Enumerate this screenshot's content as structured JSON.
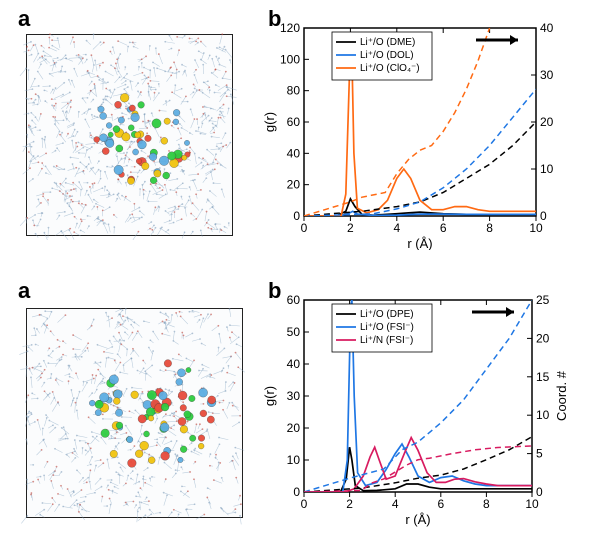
{
  "labels": {
    "a": "a",
    "b": "b"
  },
  "top": {
    "sim_alt": "molecular simulation snapshot (DME/DOL/ClO4)",
    "chart": {
      "type": "line",
      "xlabel": "r (Å)",
      "ylabel_left": "g(r)",
      "xlim": [
        0,
        10
      ],
      "ylim_left": [
        0,
        120
      ],
      "ylim_right": [
        0,
        40
      ],
      "xticks": [
        0,
        2,
        4,
        6,
        8,
        10
      ],
      "yticks_left": [
        0,
        20,
        40,
        60,
        80,
        100,
        120
      ],
      "yticks_right": [
        0,
        10,
        20,
        30,
        40
      ],
      "background_color": "#ffffff",
      "axis_color": "#000000",
      "legend": [
        {
          "label": "Li⁺/O (DME)",
          "color": "#000000"
        },
        {
          "label": "Li⁺/O (DOL)",
          "color": "#1f77e4"
        },
        {
          "label": "Li⁺/O (ClO₄⁻)",
          "color": "#ff6a13"
        }
      ],
      "series_solid": [
        {
          "color": "#000000",
          "xy": [
            [
              0,
              0
            ],
            [
              1.4,
              0
            ],
            [
              1.8,
              3
            ],
            [
              2.0,
              11
            ],
            [
              2.2,
              6
            ],
            [
              2.5,
              1
            ],
            [
              3.0,
              0.5
            ],
            [
              4.0,
              1.5
            ],
            [
              4.5,
              2
            ],
            [
              5.0,
              2.5
            ],
            [
              6.0,
              1.5
            ],
            [
              7.0,
              1
            ],
            [
              8.0,
              1
            ],
            [
              9.0,
              1
            ],
            [
              10,
              1
            ]
          ]
        },
        {
          "color": "#1f77e4",
          "xy": [
            [
              0,
              0
            ],
            [
              1.5,
              0
            ],
            [
              1.9,
              1.5
            ],
            [
              2.1,
              3
            ],
            [
              2.3,
              1.2
            ],
            [
              3.0,
              0.3
            ],
            [
              4.0,
              0.6
            ],
            [
              5.0,
              1.2
            ],
            [
              6.0,
              1.2
            ],
            [
              7.0,
              1
            ],
            [
              8.0,
              1
            ],
            [
              9.0,
              1
            ],
            [
              10,
              1
            ]
          ]
        },
        {
          "color": "#ff6a13",
          "xy": [
            [
              0,
              0
            ],
            [
              1.6,
              0
            ],
            [
              1.8,
              14
            ],
            [
              2.0,
              110
            ],
            [
              2.05,
              112
            ],
            [
              2.15,
              40
            ],
            [
              2.3,
              5
            ],
            [
              2.7,
              2
            ],
            [
              3.2,
              4
            ],
            [
              3.6,
              10
            ],
            [
              4.0,
              24
            ],
            [
              4.3,
              30
            ],
            [
              4.6,
              24
            ],
            [
              5.0,
              10
            ],
            [
              5.5,
              4
            ],
            [
              6.0,
              4
            ],
            [
              6.5,
              6
            ],
            [
              7.0,
              6
            ],
            [
              7.5,
              4
            ],
            [
              8.0,
              3
            ],
            [
              9.0,
              3
            ],
            [
              10,
              3
            ]
          ]
        }
      ],
      "series_dashed_right": [
        {
          "color": "#000000",
          "xy": [
            [
              0,
              0
            ],
            [
              2.0,
              0.8
            ],
            [
              2.5,
              1
            ],
            [
              4.0,
              2
            ],
            [
              5.0,
              3
            ],
            [
              6.0,
              5
            ],
            [
              7.0,
              8
            ],
            [
              8.0,
              11
            ],
            [
              9.0,
              15
            ],
            [
              10,
              20
            ]
          ]
        },
        {
          "color": "#1f77e4",
          "xy": [
            [
              0,
              0
            ],
            [
              2.0,
              0.3
            ],
            [
              3.0,
              0.5
            ],
            [
              4.0,
              1.5
            ],
            [
              5.0,
              3
            ],
            [
              6.0,
              6
            ],
            [
              7.0,
              10
            ],
            [
              8.0,
              15
            ],
            [
              9.0,
              21
            ],
            [
              10,
              27
            ]
          ]
        },
        {
          "color": "#ff6a13",
          "xy": [
            [
              0,
              0
            ],
            [
              2.0,
              3
            ],
            [
              2.5,
              4
            ],
            [
              3.5,
              5
            ],
            [
              4.0,
              9
            ],
            [
              4.5,
              12
            ],
            [
              5.0,
              14
            ],
            [
              5.5,
              15
            ],
            [
              6.0,
              18
            ],
            [
              6.5,
              22
            ],
            [
              7.0,
              27
            ],
            [
              7.5,
              33
            ],
            [
              8.0,
              40
            ]
          ]
        }
      ]
    }
  },
  "bottom": {
    "sim_alt": "molecular simulation snapshot (DPE/FSI)",
    "chart": {
      "type": "line",
      "xlabel": "r (Å)",
      "ylabel_left": "g(r)",
      "ylabel_right": "Coord. #",
      "xlim": [
        0,
        10
      ],
      "ylim_left": [
        0,
        60
      ],
      "ylim_right": [
        0,
        25
      ],
      "xticks": [
        0,
        2,
        4,
        6,
        8,
        10
      ],
      "yticks_left": [
        0,
        10,
        20,
        30,
        40,
        50,
        60
      ],
      "yticks_right": [
        0,
        5,
        10,
        15,
        20,
        25
      ],
      "background_color": "#ffffff",
      "axis_color": "#000000",
      "legend": [
        {
          "label": "Li⁺/O (DPE)",
          "color": "#000000"
        },
        {
          "label": "Li⁺/O (FSI⁻)",
          "color": "#1f77e4"
        },
        {
          "label": "Li⁺/N (FSI⁻)",
          "color": "#d81b60"
        }
      ],
      "series_solid": [
        {
          "color": "#000000",
          "xy": [
            [
              0,
              0
            ],
            [
              1.6,
              0
            ],
            [
              1.85,
              4
            ],
            [
              2.0,
              14
            ],
            [
              2.1,
              10
            ],
            [
              2.25,
              2
            ],
            [
              2.6,
              0.4
            ],
            [
              3.2,
              0.5
            ],
            [
              4.0,
              1
            ],
            [
              4.5,
              2.5
            ],
            [
              5.0,
              2.5
            ],
            [
              5.5,
              1.5
            ],
            [
              6.0,
              1
            ],
            [
              7.0,
              1
            ],
            [
              8.0,
              1
            ],
            [
              9.0,
              1
            ],
            [
              10,
              1
            ]
          ]
        },
        {
          "color": "#1f77e4",
          "xy": [
            [
              0,
              0
            ],
            [
              1.7,
              0
            ],
            [
              1.9,
              10
            ],
            [
              2.05,
              58
            ],
            [
              2.1,
              60
            ],
            [
              2.2,
              30
            ],
            [
              2.35,
              6
            ],
            [
              2.7,
              2
            ],
            [
              3.2,
              3
            ],
            [
              3.6,
              7
            ],
            [
              4.0,
              12
            ],
            [
              4.3,
              15
            ],
            [
              4.6,
              11
            ],
            [
              5.0,
              5
            ],
            [
              5.5,
              3
            ],
            [
              6.0,
              4.5
            ],
            [
              6.5,
              5
            ],
            [
              7.0,
              3.5
            ],
            [
              7.5,
              2.5
            ],
            [
              8.0,
              2
            ],
            [
              9.0,
              2
            ],
            [
              10,
              2
            ]
          ]
        },
        {
          "color": "#d81b60",
          "xy": [
            [
              0,
              0
            ],
            [
              1.8,
              0
            ],
            [
              2.2,
              1
            ],
            [
              2.6,
              5
            ],
            [
              2.9,
              11
            ],
            [
              3.1,
              14
            ],
            [
              3.3,
              10
            ],
            [
              3.6,
              4
            ],
            [
              4.0,
              5
            ],
            [
              4.4,
              12
            ],
            [
              4.7,
              17
            ],
            [
              5.0,
              13
            ],
            [
              5.4,
              6
            ],
            [
              5.8,
              3
            ],
            [
              6.2,
              3
            ],
            [
              6.6,
              4
            ],
            [
              7.0,
              4.2
            ],
            [
              7.5,
              3.2
            ],
            [
              8.0,
              2.5
            ],
            [
              8.5,
              2
            ],
            [
              9.0,
              2
            ],
            [
              10,
              2
            ]
          ]
        }
      ],
      "series_dashed_right": [
        {
          "color": "#000000",
          "xy": [
            [
              0,
              0
            ],
            [
              2.0,
              0.4
            ],
            [
              2.5,
              0.5
            ],
            [
              4.0,
              1.2
            ],
            [
              5.0,
              1.8
            ],
            [
              6.0,
              2.2
            ],
            [
              7.0,
              3
            ],
            [
              8.0,
              4.2
            ],
            [
              9.0,
              5.5
            ],
            [
              10,
              7.2
            ]
          ]
        },
        {
          "color": "#1f77e4",
          "xy": [
            [
              0,
              0
            ],
            [
              2.0,
              1.8
            ],
            [
              2.5,
              2.2
            ],
            [
              3.5,
              3
            ],
            [
              4.3,
              5.5
            ],
            [
              5.0,
              6.5
            ],
            [
              6.0,
              9
            ],
            [
              7.0,
              12
            ],
            [
              8.0,
              16
            ],
            [
              9.0,
              20
            ],
            [
              10,
              25
            ]
          ]
        },
        {
          "color": "#d81b60",
          "xy": [
            [
              0,
              0
            ],
            [
              2.5,
              0.2
            ],
            [
              3.0,
              1.2
            ],
            [
              3.5,
              1.7
            ],
            [
              4.5,
              3.5
            ],
            [
              5.0,
              4.2
            ],
            [
              5.5,
              4.4
            ],
            [
              6.5,
              5
            ],
            [
              7.5,
              5.5
            ],
            [
              8.5,
              5.8
            ],
            [
              10,
              6
            ]
          ]
        }
      ]
    }
  }
}
